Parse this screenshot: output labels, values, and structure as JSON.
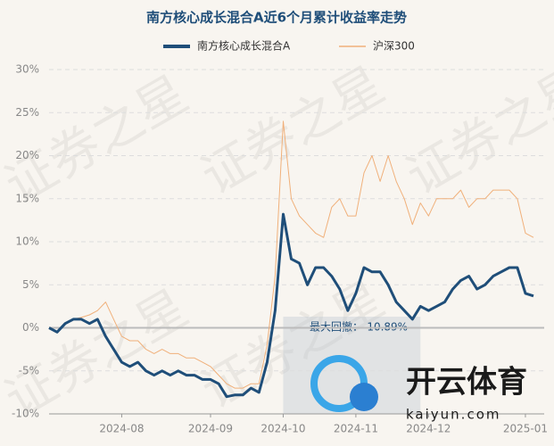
{
  "chart_data": {
    "type": "line",
    "title": "南方核心成长混合A近6个月累计收益率走势",
    "annotation": "最大回撤：-10.89%",
    "watermark": "证券之星",
    "logo_text": "开云体育",
    "logo_url": "kaiyun.com",
    "categories": [
      null,
      null,
      null,
      null,
      null,
      null,
      null,
      null,
      null,
      "2024-08",
      null,
      null,
      null,
      null,
      null,
      null,
      null,
      null,
      null,
      null,
      "2024-09",
      null,
      null,
      null,
      null,
      null,
      null,
      null,
      null,
      "2024-10",
      null,
      null,
      null,
      null,
      null,
      null,
      null,
      null,
      "2024-11",
      null,
      null,
      null,
      null,
      null,
      null,
      null,
      null,
      "2024-12",
      null,
      null,
      null,
      null,
      null,
      null,
      null,
      null,
      null,
      null,
      null,
      "2025-01",
      null
    ],
    "series": [
      {
        "name": "南方核心成长混合A",
        "color": "#1f4e79",
        "values": [
          0,
          -0.5,
          0.5,
          1,
          1,
          0.5,
          1,
          -1,
          -2.5,
          -4,
          -4.5,
          -4,
          -5,
          -5.5,
          -5,
          -5.5,
          -5,
          -5.5,
          -5.5,
          -6,
          -6,
          -6.5,
          -8,
          -7.8,
          -7.8,
          -7,
          -7.5,
          -4,
          2,
          13.2,
          8,
          7.5,
          5,
          7,
          7,
          6,
          4.5,
          2,
          4,
          7,
          6.5,
          6.5,
          5,
          3,
          2,
          1,
          2.5,
          2,
          2.5,
          3,
          4.5,
          5.5,
          6,
          4.5,
          5,
          6,
          6.5,
          7,
          7,
          4,
          3.7
        ]
      },
      {
        "name": "沪深300",
        "color": "#f0b07a",
        "values": [
          0,
          -0.5,
          0.5,
          1,
          1.2,
          1.5,
          2,
          3,
          1,
          -1,
          -1.5,
          -1.5,
          -2.5,
          -3,
          -2.5,
          -3,
          -3,
          -3.5,
          -3.5,
          -4,
          -4.5,
          -5.5,
          -6.5,
          -7,
          -7,
          -6.5,
          -6.5,
          -2,
          6,
          24,
          15,
          13,
          12,
          11,
          10.5,
          14,
          15,
          13,
          13,
          18,
          20,
          17,
          20,
          17,
          15,
          12,
          14.5,
          13,
          15,
          15,
          15,
          16,
          14,
          15,
          15,
          16,
          16,
          16,
          15,
          11,
          10.5
        ]
      }
    ],
    "ylim": [
      -10,
      30
    ],
    "yticks": [
      {
        "value": -10,
        "label": "-10%"
      },
      {
        "value": -5,
        "label": "-5%"
      },
      {
        "value": 0,
        "label": "0%"
      },
      {
        "value": 5,
        "label": "5%"
      },
      {
        "value": 10,
        "label": "10%"
      },
      {
        "value": 15,
        "label": "15%"
      },
      {
        "value": 20,
        "label": "20%"
      },
      {
        "value": 25,
        "label": "25%"
      },
      {
        "value": 30,
        "label": "30%"
      }
    ],
    "grid": true
  }
}
